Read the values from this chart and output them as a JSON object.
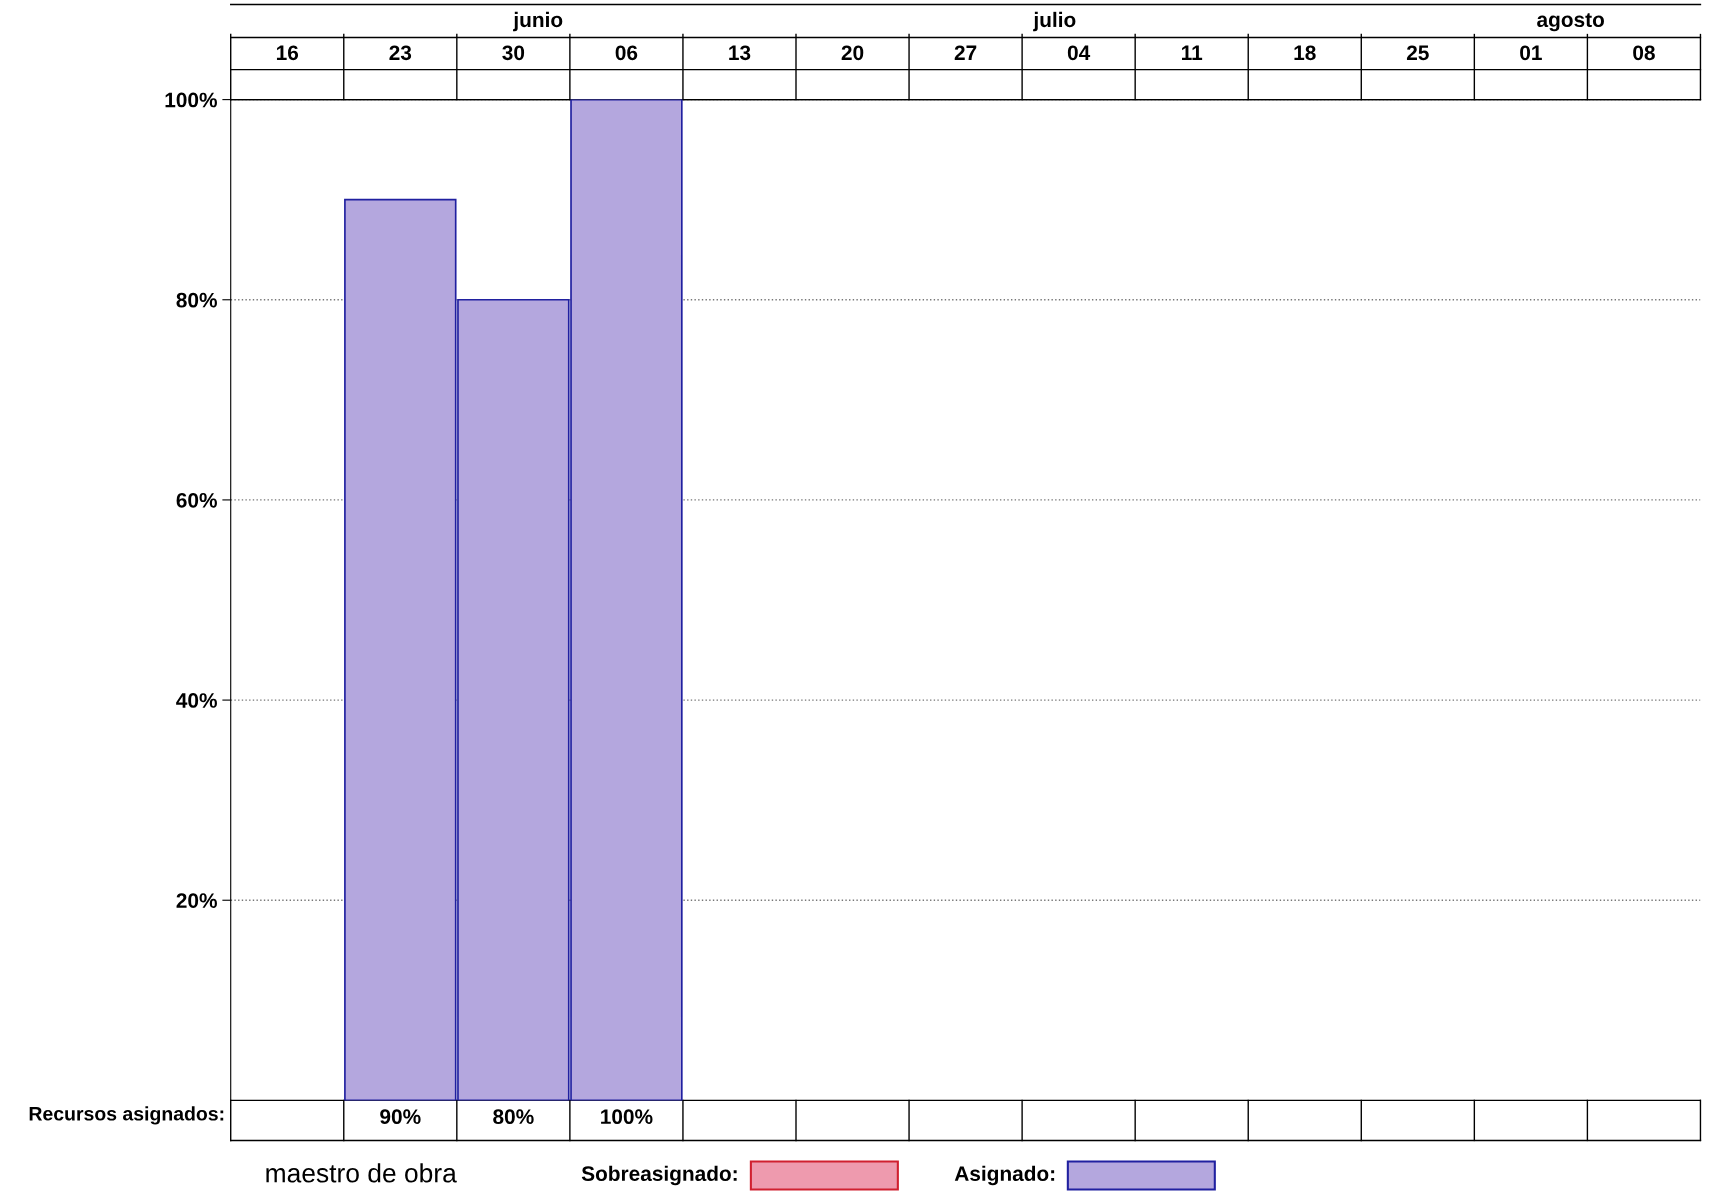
{
  "chart_data": {
    "type": "bar",
    "categories": [
      "16",
      "23",
      "30",
      "06",
      "13",
      "20",
      "27",
      "04",
      "11",
      "18",
      "25",
      "01",
      "08"
    ],
    "series": [
      {
        "color": "#b4a7de",
        "values": [
          null,
          90,
          80,
          100,
          null,
          null,
          null,
          null,
          null,
          null,
          null,
          null,
          null
        ],
        "value_labels": [
          null,
          "90%",
          "80%",
          "100%",
          null,
          null,
          null,
          null,
          null,
          null,
          null,
          null,
          null
        ]
      }
    ],
    "ylim": [
      0,
      100
    ],
    "yticks": [
      {
        "value": 20,
        "label": "20%"
      },
      {
        "value": 40,
        "label": "40%"
      },
      {
        "value": 60,
        "label": "60%"
      },
      {
        "value": 80,
        "label": "80%"
      },
      {
        "value": 100,
        "label": "100%"
      }
    ],
    "grid": "y",
    "annotations": [
      "junio",
      "julio",
      "agosto",
      "Recursos asignados:",
      "maestro de obra",
      "Sobreasignado:",
      "Asignado:"
    ]
  }
}
